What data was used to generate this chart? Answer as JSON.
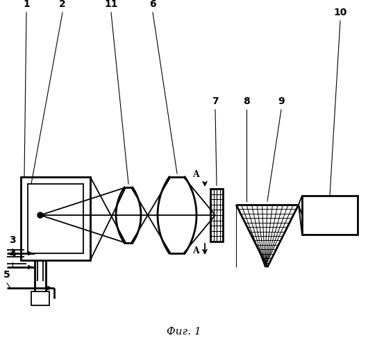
{
  "title": "Фиг. 1",
  "bg_color": "#ffffff",
  "line_color": "#000000",
  "fig_width": 5.3,
  "fig_height": 5.0,
  "dpi": 100
}
